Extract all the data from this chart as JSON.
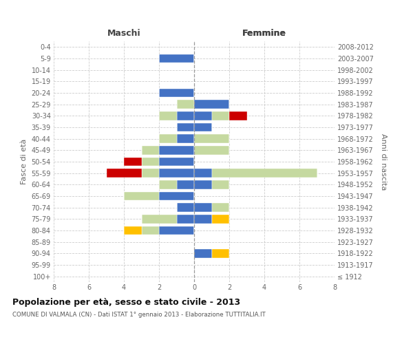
{
  "age_groups": [
    "100+",
    "95-99",
    "90-94",
    "85-89",
    "80-84",
    "75-79",
    "70-74",
    "65-69",
    "60-64",
    "55-59",
    "50-54",
    "45-49",
    "40-44",
    "35-39",
    "30-34",
    "25-29",
    "20-24",
    "15-19",
    "10-14",
    "5-9",
    "0-4"
  ],
  "birth_years": [
    "≤ 1912",
    "1913-1917",
    "1918-1922",
    "1923-1927",
    "1928-1932",
    "1933-1937",
    "1938-1942",
    "1943-1947",
    "1948-1952",
    "1953-1957",
    "1958-1962",
    "1963-1967",
    "1968-1972",
    "1973-1977",
    "1978-1982",
    "1983-1987",
    "1988-1992",
    "1993-1997",
    "1998-2002",
    "2003-2007",
    "2008-2012"
  ],
  "colors": {
    "celibi": "#4472c4",
    "coniugati": "#c5d9a0",
    "vedovi": "#ffc000",
    "divorziati": "#cc0000"
  },
  "maschi": {
    "celibi": [
      0,
      0,
      0,
      0,
      2,
      1,
      1,
      2,
      1,
      2,
      2,
      2,
      1,
      1,
      1,
      0,
      2,
      0,
      0,
      2,
      0
    ],
    "coniugati": [
      0,
      0,
      0,
      0,
      1,
      2,
      0,
      2,
      1,
      1,
      1,
      1,
      1,
      0,
      1,
      1,
      0,
      0,
      0,
      0,
      0
    ],
    "vedovi": [
      0,
      0,
      0,
      0,
      1,
      0,
      0,
      0,
      0,
      0,
      0,
      0,
      0,
      0,
      0,
      0,
      0,
      0,
      0,
      0,
      0
    ],
    "divorziati": [
      0,
      0,
      0,
      0,
      0,
      0,
      0,
      0,
      0,
      2,
      1,
      0,
      0,
      0,
      0,
      0,
      0,
      0,
      0,
      0,
      0
    ]
  },
  "femmine": {
    "celibi": [
      0,
      0,
      1,
      0,
      0,
      1,
      1,
      0,
      1,
      1,
      0,
      0,
      0,
      1,
      1,
      2,
      0,
      0,
      0,
      0,
      0
    ],
    "coniugati": [
      0,
      0,
      0,
      0,
      0,
      0,
      1,
      0,
      1,
      6,
      0,
      2,
      2,
      0,
      1,
      0,
      0,
      0,
      0,
      0,
      0
    ],
    "vedovi": [
      0,
      0,
      1,
      0,
      0,
      1,
      0,
      0,
      0,
      0,
      0,
      0,
      0,
      0,
      0,
      0,
      0,
      0,
      0,
      0,
      0
    ],
    "divorziati": [
      0,
      0,
      0,
      0,
      0,
      0,
      0,
      0,
      0,
      0,
      0,
      0,
      0,
      0,
      1,
      0,
      0,
      0,
      0,
      0,
      0
    ]
  },
  "title": "Popolazione per età, sesso e stato civile - 2013",
  "subtitle": "COMUNE DI VALMALA (CN) - Dati ISTAT 1° gennaio 2013 - Elaborazione TUTTITALIA.IT",
  "ylabel_left": "Fasce di età",
  "ylabel_right": "Anni di nascita",
  "xlabel_left": "Maschi",
  "xlabel_right": "Femmine",
  "xlim": 8
}
